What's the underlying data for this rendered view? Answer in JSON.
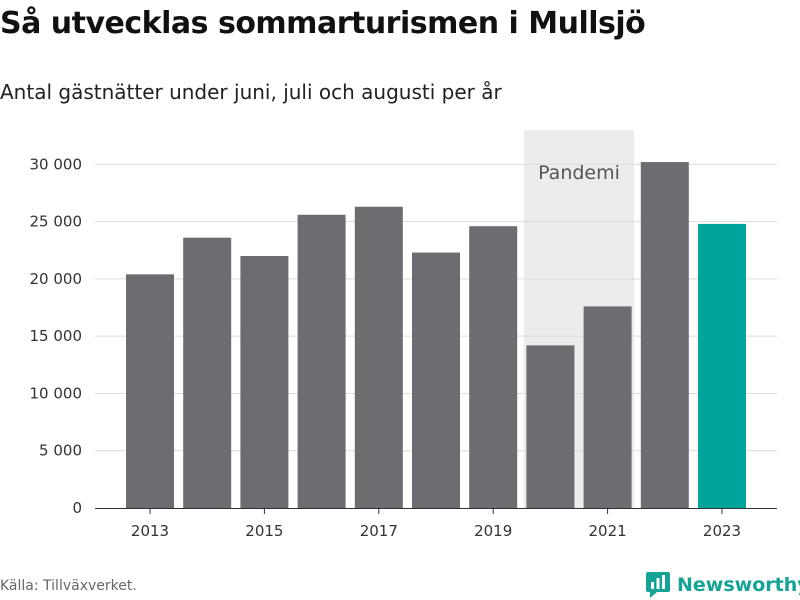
{
  "header": {
    "title": "Så utvecklas sommarturismen i Mullsjö",
    "subtitle": "Antal gästnätter under juni, juli och augusti per år"
  },
  "footer": {
    "source": "Källa: Tillväxverket.",
    "brand": "Newsworthy"
  },
  "colors": {
    "bar": "#6d6c71",
    "highlight": "#00a49a",
    "band": "#ececec",
    "grid": "#dcdcdc",
    "brand": "#14a394"
  },
  "chart_data": {
    "type": "bar",
    "categories": [
      "2013",
      "2014",
      "2015",
      "2016",
      "2017",
      "2018",
      "2019",
      "2020",
      "2021",
      "2022",
      "2023"
    ],
    "values": [
      20400,
      23600,
      22000,
      25600,
      26300,
      22300,
      24600,
      14200,
      17600,
      30200,
      24800
    ],
    "highlight_category": "2023",
    "xticks": [
      "2013",
      "2015",
      "2017",
      "2019",
      "2021",
      "2023"
    ],
    "yticks": [
      0,
      5000,
      10000,
      15000,
      20000,
      25000,
      30000
    ],
    "ytick_labels": [
      "0",
      "5 000",
      "10 000",
      "15 000",
      "20 000",
      "25 000",
      "30 000"
    ],
    "ylim": [
      0,
      33000
    ],
    "grid": true,
    "legend": "none",
    "annotations": [
      {
        "label": "Pandemi",
        "from": "2020",
        "to": "2021"
      }
    ]
  }
}
